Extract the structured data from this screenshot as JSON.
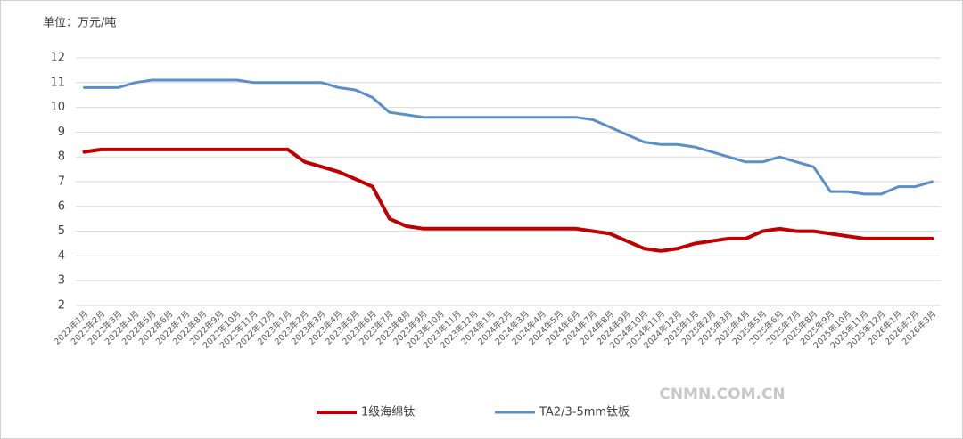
{
  "chart_data": {
    "type": "line",
    "y_label": "单位：万元/吨",
    "categories": [
      "2022年1月",
      "2022年2月",
      "2022年3月",
      "2022年4月",
      "2022年5月",
      "2022年6月",
      "2022年7月",
      "2022年8月",
      "2022年9月",
      "2022年10月",
      "2022年11月",
      "2022年12月",
      "2023年1月",
      "2023年2月",
      "2023年3月",
      "2023年4月",
      "2023年5月",
      "2023年6月",
      "2023年7月",
      "2023年8月",
      "2023年9月",
      "2023年10月",
      "2023年11月",
      "2023年12月",
      "2024年1月",
      "2024年2月",
      "2024年3月",
      "2024年4月",
      "2024年5月",
      "2024年6月",
      "2024年7月",
      "2024年8月",
      "2024年9月",
      "2024年10月",
      "2024年11月",
      "2024年12月",
      "2025年1月",
      "2025年2月",
      "2025年3月",
      "2025年4月",
      "2025年5月",
      "2025年6月",
      "2025年7月",
      "2025年8月",
      "2025年9月",
      "2025年10月",
      "2025年11月",
      "2025年12月",
      "2026年1月",
      "2026年2月",
      "2026年3月"
    ],
    "series": [
      {
        "name": "1级海绵钛",
        "color": "#c00000",
        "values": [
          8.2,
          8.3,
          8.3,
          8.3,
          8.3,
          8.3,
          8.3,
          8.3,
          8.3,
          8.3,
          8.3,
          8.3,
          8.3,
          7.8,
          7.6,
          7.4,
          7.1,
          6.8,
          5.5,
          5.2,
          5.1,
          5.1,
          5.1,
          5.1,
          5.1,
          5.1,
          5.1,
          5.1,
          5.1,
          5.1,
          5.0,
          4.9,
          4.6,
          4.3,
          4.2,
          4.3,
          4.5,
          4.6,
          4.7,
          4.7,
          5.0,
          5.1,
          5.0,
          5.0,
          4.9,
          4.8,
          4.7,
          4.7,
          4.7,
          4.7,
          4.7
        ]
      },
      {
        "name": "TA2/3-5mm钛板",
        "color": "#5b8fc7",
        "values": [
          10.8,
          10.8,
          10.8,
          11.0,
          11.1,
          11.1,
          11.1,
          11.1,
          11.1,
          11.1,
          11.0,
          11.0,
          11.0,
          11.0,
          11.0,
          10.8,
          10.7,
          10.4,
          9.8,
          9.7,
          9.6,
          9.6,
          9.6,
          9.6,
          9.6,
          9.6,
          9.6,
          9.6,
          9.6,
          9.6,
          9.5,
          9.2,
          8.9,
          8.6,
          8.5,
          8.5,
          8.4,
          8.2,
          8.0,
          7.8,
          7.8,
          8.0,
          7.8,
          7.6,
          6.6,
          6.6,
          6.5,
          6.5,
          6.8,
          6.8,
          7.0
        ]
      }
    ],
    "ylim": [
      2,
      12
    ],
    "yticks": [
      2,
      3,
      4,
      5,
      6,
      7,
      8,
      9,
      10,
      11,
      12
    ],
    "grid": true,
    "legend": "bottom",
    "watermark": "CNMN.COM.CN"
  }
}
